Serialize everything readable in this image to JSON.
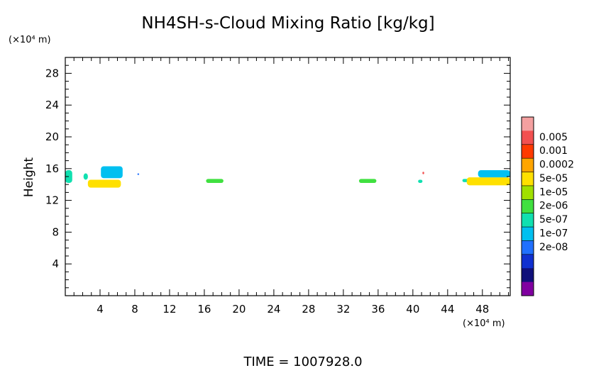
{
  "chart_data": {
    "type": "heatmap",
    "title": "NH4SH-s-Cloud Mixing Ratio [kg/kg]",
    "xlabel": "",
    "ylabel": "Height",
    "x_unit": "(×10⁴ m)",
    "y_unit": "(×10⁴ m)",
    "xlim": [
      0,
      51.2
    ],
    "ylim": [
      0,
      30
    ],
    "x_ticks": [
      4,
      8,
      12,
      16,
      20,
      24,
      28,
      32,
      36,
      40,
      44,
      48
    ],
    "y_ticks": [
      4,
      8,
      12,
      16,
      20,
      24,
      28
    ],
    "colorbar": {
      "labels": [
        "0.005",
        "0.001",
        "0.0002",
        "5e-05",
        "1e-05",
        "2e-06",
        "5e-07",
        "1e-07",
        "2e-08"
      ],
      "colors": [
        "#f4a0a0",
        "#f25050",
        "#ff3a00",
        "#ffa500",
        "#ffe000",
        "#a0e000",
        "#40e040",
        "#10e0b0",
        "#00c0f0",
        "#2070ff",
        "#1030d0",
        "#10107a",
        "#8000a0"
      ]
    },
    "cloud_patches": [
      {
        "x": [
          0,
          0.8
        ],
        "y": [
          14.2,
          15.8
        ],
        "level": "5e-07"
      },
      {
        "x": [
          2.1,
          2.6
        ],
        "y": [
          14.6,
          15.4
        ],
        "level": "5e-07"
      },
      {
        "x": [
          2.6,
          6.4
        ],
        "y": [
          13.6,
          14.6
        ],
        "level": "5e-05"
      },
      {
        "x": [
          4.1,
          6.6
        ],
        "y": [
          14.8,
          16.3
        ],
        "level": "1e-07"
      },
      {
        "x": [
          8.3,
          8.5
        ],
        "y": [
          15.2,
          15.4
        ],
        "level": "2e-08"
      },
      {
        "x": [
          16.2,
          18.2
        ],
        "y": [
          14.2,
          14.7
        ],
        "level": "2e-06"
      },
      {
        "x": [
          33.8,
          35.8
        ],
        "y": [
          14.2,
          14.7
        ],
        "level": "2e-06"
      },
      {
        "x": [
          40.6,
          41.1
        ],
        "y": [
          14.2,
          14.6
        ],
        "level": "5e-07"
      },
      {
        "x": [
          41.1,
          41.3
        ],
        "y": [
          15.3,
          15.6
        ],
        "level": "0.005"
      },
      {
        "x": [
          45.7,
          46.4
        ],
        "y": [
          14.3,
          14.7
        ],
        "level": "5e-07"
      },
      {
        "x": [
          46.2,
          51.2
        ],
        "y": [
          13.9,
          14.9
        ],
        "level": "5e-05"
      },
      {
        "x": [
          47.5,
          51.2
        ],
        "y": [
          14.9,
          15.8
        ],
        "level": "1e-07"
      }
    ]
  },
  "footer": {
    "time_text": "TIME = 1007928.0"
  }
}
